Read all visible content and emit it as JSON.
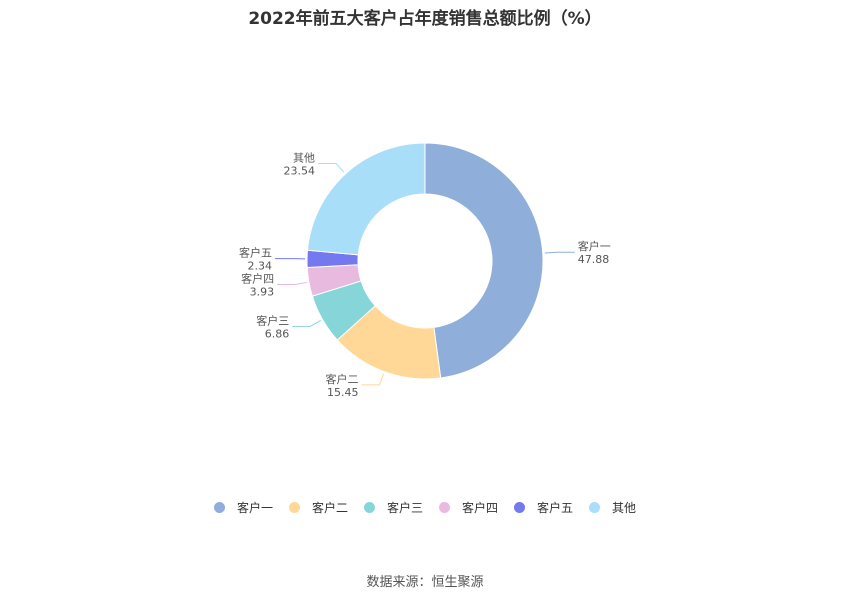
{
  "title": "2022年前五大客户占年度销售总额比例（%）",
  "source": "数据来源：恒生聚源",
  "chart_data": {
    "type": "pie",
    "variant": "donut",
    "title": "2022年前五大客户占年度销售总额比例（%）",
    "categories": [
      "客户一",
      "客户二",
      "客户三",
      "客户四",
      "客户五",
      "其他"
    ],
    "values": [
      47.88,
      15.45,
      6.86,
      3.93,
      2.34,
      23.54
    ],
    "value_labels": [
      "47.88",
      "15.45",
      "6.86",
      "3.93",
      "2.34",
      "23.54"
    ],
    "colors": [
      "#8FAEDA",
      "#FFD898",
      "#86D6D9",
      "#E8BADF",
      "#7479F0",
      "#A9DEF8"
    ],
    "legend": "bottom-center"
  }
}
